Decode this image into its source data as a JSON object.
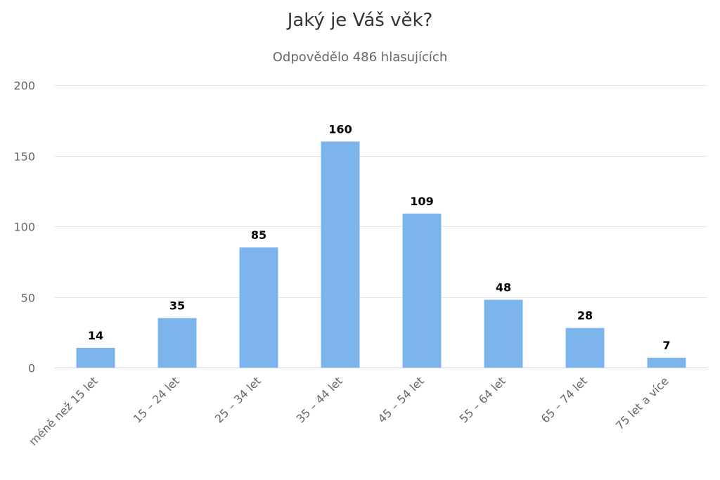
{
  "chart_data": {
    "type": "bar",
    "title": "Jaký je Váš věk?",
    "subtitle": "Odpovědělo 486 hlasujících",
    "xlabel": "",
    "ylabel": "",
    "categories": [
      "méně než 15 let",
      "15 – 24 let",
      "25 – 34 let",
      "35 – 44 let",
      "45 – 54 let",
      "55 – 64 let",
      "65 – 74 let",
      "75 let a více"
    ],
    "values": [
      14,
      35,
      85,
      160,
      109,
      48,
      28,
      7
    ],
    "ylim": [
      0,
      200
    ],
    "yticks": [
      0,
      50,
      100,
      150,
      200
    ],
    "grid": true,
    "legend": "none",
    "bar_color": "#7cb5ec",
    "grid_color": "#e6e6e6",
    "axis_color": "#ccd6eb"
  }
}
